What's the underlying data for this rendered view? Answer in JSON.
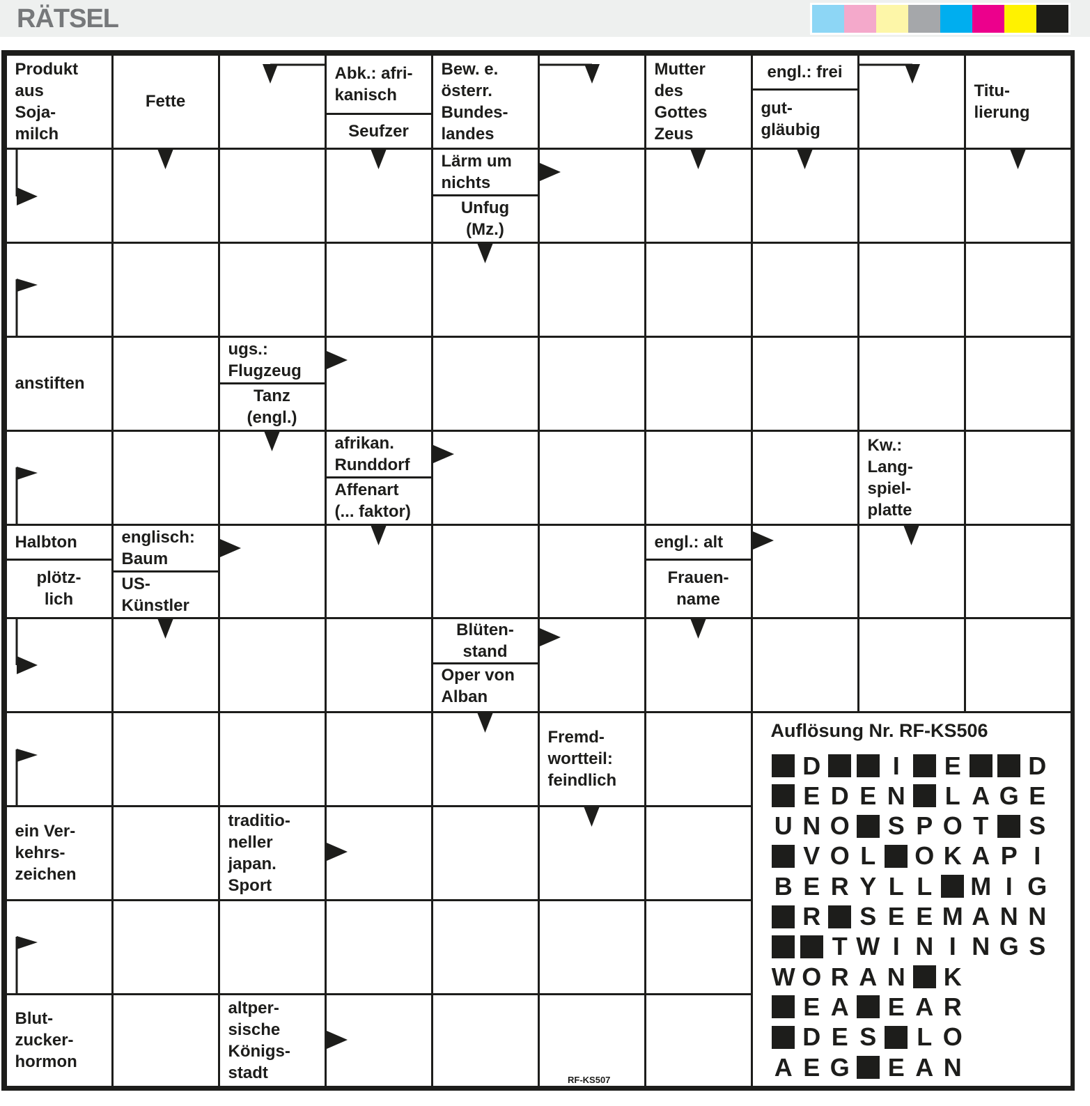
{
  "header": {
    "title": "RÄTSEL",
    "swatches": [
      "#8dd6f5",
      "#f4a9cb",
      "#fdf6a8",
      "#a5a7aa",
      "#00aeef",
      "#ec008c",
      "#fff200",
      "#1d1d1b"
    ]
  },
  "clues": [
    {
      "parts": [
        "Produkt\naus\nSoja-\nmilch"
      ]
    },
    {
      "parts": [
        "Fette"
      ]
    },
    {
      "parts": [
        "Abk.: afri-\nkanisch",
        "Seufzer"
      ]
    },
    {
      "parts": [
        "Bew. e.\nösterr.\nBundes-\nlandes"
      ]
    },
    {
      "parts": [
        "Mutter\ndes\nGottes\nZeus"
      ]
    },
    {
      "parts": [
        "engl.: frei",
        "gut-\ngläubig"
      ]
    },
    {
      "parts": [
        "Titu-\nlierung"
      ]
    },
    {
      "parts": [
        "Lärm um\nnichts",
        "Unfug\n(Mz.)"
      ]
    },
    {
      "parts": [
        "anstiften"
      ]
    },
    {
      "parts": [
        "ugs.:\nFlugzeug",
        "Tanz\n(engl.)"
      ]
    },
    {
      "parts": [
        "afrikan.\nRunddorf",
        "Affenart\n(... faktor)"
      ]
    },
    {
      "parts": [
        "Kw.:\nLang-\nspiel-\nplatte"
      ]
    },
    {
      "parts": [
        "Halbton",
        "plötz-\nlich"
      ]
    },
    {
      "parts": [
        "englisch:\nBaum",
        "US-\nKünstler"
      ]
    },
    {
      "parts": [
        "engl.: alt",
        "Frauen-\nname"
      ]
    },
    {
      "parts": [
        "Blüten-\nstand",
        "Oper von\nAlban\nBerg"
      ]
    },
    {
      "parts": [
        "Fremd-\nwortteil:\nfeindlich"
      ]
    },
    {
      "parts": [
        "ein Ver-\nkehrs-\nzeichen"
      ]
    },
    {
      "parts": [
        "traditio-\nneller\njapan.\nSport"
      ]
    },
    {
      "parts": [
        "Blut-\nzucker-\nhormon"
      ]
    },
    {
      "parts": [
        "altper-\nsische\nKönigs-\nstadt"
      ]
    }
  ],
  "solution": {
    "title": "Auflösung Nr. RF-KS506",
    "rows": [
      "#D##I#E##D",
      "#EDEN#LAGE",
      "UNO#SPOT#S",
      "#VOL#OKAPI",
      "BERYLL#MIG",
      "#R#SEEMANN",
      "##TWININGS",
      "WORAN#K",
      "#EA#EAR",
      "#DES#LO",
      "AEG#EAN"
    ]
  },
  "puzzle_code": "RF-KS507"
}
